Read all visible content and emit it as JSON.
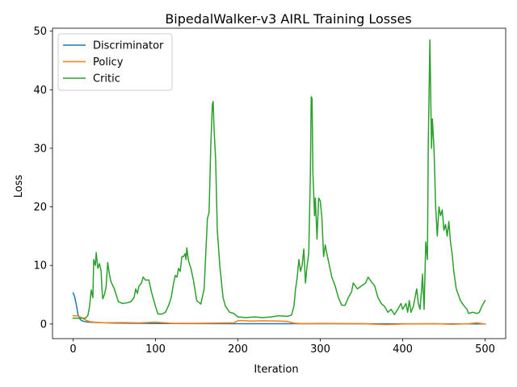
{
  "chart_data": {
    "type": "line",
    "title": "BipedalWalker-v3 AIRL Training Losses",
    "xlabel": "Iteration",
    "ylabel": "Loss",
    "xlim": [
      -25,
      525
    ],
    "ylim": [
      -2.5,
      50.5
    ],
    "xticks": [
      0,
      100,
      200,
      300,
      400,
      500
    ],
    "yticks": [
      0,
      10,
      20,
      30,
      40,
      50
    ],
    "grid": false,
    "legend_position": "top-left",
    "series": [
      {
        "name": "Discriminator",
        "color": "#1f77b4",
        "points": [
          [
            0,
            5.3
          ],
          [
            2,
            4.6
          ],
          [
            4,
            3.2
          ],
          [
            6,
            1.6
          ],
          [
            8,
            0.9
          ],
          [
            10,
            0.6
          ],
          [
            13,
            0.45
          ],
          [
            16,
            0.35
          ],
          [
            20,
            0.3
          ],
          [
            30,
            0.25
          ],
          [
            50,
            0.15
          ],
          [
            100,
            0.08
          ],
          [
            150,
            0.06
          ],
          [
            200,
            0.05
          ],
          [
            300,
            0.04
          ],
          [
            400,
            0.03
          ],
          [
            500,
            0.02
          ]
        ]
      },
      {
        "name": "Policy",
        "color": "#ff7f0e",
        "points": [
          [
            0,
            1.4
          ],
          [
            5,
            1.4
          ],
          [
            10,
            1.1
          ],
          [
            15,
            0.7
          ],
          [
            20,
            0.4
          ],
          [
            30,
            0.25
          ],
          [
            40,
            0.2
          ],
          [
            60,
            0.25
          ],
          [
            80,
            0.18
          ],
          [
            100,
            0.32
          ],
          [
            120,
            0.12
          ],
          [
            150,
            0.12
          ],
          [
            195,
            0.2
          ],
          [
            200,
            0.55
          ],
          [
            205,
            0.6
          ],
          [
            215,
            0.5
          ],
          [
            230,
            0.55
          ],
          [
            250,
            0.5
          ],
          [
            260,
            0.45
          ],
          [
            268,
            0.15
          ],
          [
            280,
            0.05
          ],
          [
            300,
            0.1
          ],
          [
            350,
            0.05
          ],
          [
            380,
            -0.1
          ],
          [
            400,
            0.0
          ],
          [
            440,
            0.05
          ],
          [
            460,
            -0.05
          ],
          [
            480,
            0.05
          ],
          [
            490,
            0.2
          ],
          [
            500,
            0.0
          ]
        ]
      },
      {
        "name": "Critic",
        "color": "#2ca02c",
        "points": [
          [
            0,
            1.0
          ],
          [
            5,
            1.0
          ],
          [
            10,
            1.0
          ],
          [
            15,
            1.0
          ],
          [
            18,
            1.5
          ],
          [
            20,
            3.0
          ],
          [
            22,
            5.8
          ],
          [
            24,
            4.5
          ],
          [
            25,
            11.0
          ],
          [
            27,
            10.0
          ],
          [
            28,
            12.2
          ],
          [
            30,
            9.5
          ],
          [
            32,
            10.3
          ],
          [
            34,
            9.0
          ],
          [
            35,
            6.0
          ],
          [
            36,
            4.3
          ],
          [
            38,
            5.0
          ],
          [
            40,
            6.3
          ],
          [
            42,
            10.5
          ],
          [
            44,
            8.5
          ],
          [
            46,
            7.2
          ],
          [
            50,
            6.0
          ],
          [
            55,
            3.8
          ],
          [
            60,
            3.5
          ],
          [
            65,
            3.6
          ],
          [
            70,
            3.8
          ],
          [
            74,
            4.5
          ],
          [
            76,
            6.0
          ],
          [
            78,
            5.2
          ],
          [
            80,
            6.5
          ],
          [
            83,
            7.0
          ],
          [
            85,
            8.0
          ],
          [
            88,
            7.5
          ],
          [
            92,
            7.5
          ],
          [
            95,
            5.5
          ],
          [
            100,
            3.0
          ],
          [
            103,
            1.7
          ],
          [
            108,
            1.7
          ],
          [
            112,
            2.0
          ],
          [
            116,
            3.2
          ],
          [
            119,
            4.5
          ],
          [
            122,
            7.0
          ],
          [
            124,
            8.3
          ],
          [
            126,
            8.0
          ],
          [
            128,
            9.5
          ],
          [
            130,
            9.0
          ],
          [
            132,
            11.5
          ],
          [
            134,
            11.5
          ],
          [
            136,
            12.0
          ],
          [
            137,
            11.0
          ],
          [
            138,
            13.0
          ],
          [
            140,
            10.8
          ],
          [
            143,
            9.5
          ],
          [
            146,
            7.5
          ],
          [
            150,
            4.0
          ],
          [
            155,
            3.4
          ],
          [
            159,
            6.0
          ],
          [
            163,
            18.0
          ],
          [
            165,
            19.0
          ],
          [
            167,
            30.0
          ],
          [
            169,
            37.5
          ],
          [
            170,
            38.0
          ],
          [
            171,
            33.5
          ],
          [
            173,
            28.0
          ],
          [
            175,
            16.0
          ],
          [
            178,
            10.0
          ],
          [
            182,
            4.5
          ],
          [
            185,
            3.0
          ],
          [
            190,
            2.0
          ],
          [
            195,
            1.8
          ],
          [
            200,
            1.2
          ],
          [
            210,
            1.1
          ],
          [
            220,
            1.2
          ],
          [
            230,
            1.1
          ],
          [
            240,
            1.2
          ],
          [
            250,
            1.4
          ],
          [
            260,
            1.3
          ],
          [
            265,
            1.5
          ],
          [
            268,
            3.0
          ],
          [
            270,
            6.0
          ],
          [
            272,
            8.0
          ],
          [
            274,
            11.0
          ],
          [
            276,
            9.0
          ],
          [
            278,
            10.0
          ],
          [
            280,
            12.8
          ],
          [
            282,
            7.0
          ],
          [
            284,
            10.0
          ],
          [
            286,
            12.0
          ],
          [
            288,
            26.0
          ],
          [
            289,
            38.8
          ],
          [
            290,
            38.5
          ],
          [
            291,
            26.0
          ],
          [
            293,
            18.5
          ],
          [
            294,
            21.5
          ],
          [
            296,
            14.5
          ],
          [
            298,
            21.5
          ],
          [
            300,
            21.0
          ],
          [
            302,
            18.0
          ],
          [
            304,
            11.5
          ],
          [
            306,
            13.5
          ],
          [
            308,
            12.0
          ],
          [
            311,
            10.0
          ],
          [
            314,
            8.0
          ],
          [
            318,
            6.5
          ],
          [
            322,
            4.5
          ],
          [
            326,
            3.2
          ],
          [
            330,
            3.2
          ],
          [
            334,
            4.5
          ],
          [
            338,
            5.5
          ],
          [
            340,
            7.0
          ],
          [
            345,
            6.0
          ],
          [
            350,
            6.5
          ],
          [
            355,
            7.0
          ],
          [
            358,
            8.0
          ],
          [
            362,
            7.2
          ],
          [
            366,
            6.5
          ],
          [
            370,
            4.5
          ],
          [
            374,
            3.5
          ],
          [
            378,
            3.0
          ],
          [
            382,
            2.0
          ],
          [
            386,
            2.5
          ],
          [
            390,
            1.6
          ],
          [
            394,
            2.5
          ],
          [
            396,
            3.0
          ],
          [
            398,
            3.5
          ],
          [
            400,
            2.5
          ],
          [
            402,
            3.0
          ],
          [
            404,
            3.5
          ],
          [
            406,
            2.0
          ],
          [
            408,
            4.0
          ],
          [
            410,
            2.0
          ],
          [
            413,
            3.0
          ],
          [
            415,
            4.5
          ],
          [
            417,
            6.0
          ],
          [
            419,
            3.5
          ],
          [
            421,
            2.5
          ],
          [
            423,
            6.0
          ],
          [
            424,
            8.5
          ],
          [
            426,
            2.5
          ],
          [
            428,
            14.0
          ],
          [
            430,
            11.0
          ],
          [
            431,
            30.0
          ],
          [
            433,
            48.5
          ],
          [
            435,
            30.0
          ],
          [
            436,
            35.0
          ],
          [
            438,
            30.0
          ],
          [
            440,
            20.0
          ],
          [
            442,
            15.0
          ],
          [
            444,
            20.0
          ],
          [
            446,
            18.5
          ],
          [
            448,
            19.5
          ],
          [
            450,
            16.0
          ],
          [
            452,
            17.0
          ],
          [
            454,
            15.0
          ],
          [
            456,
            17.5
          ],
          [
            458,
            14.0
          ],
          [
            460,
            12.0
          ],
          [
            462,
            9.0
          ],
          [
            465,
            6.0
          ],
          [
            470,
            4.0
          ],
          [
            475,
            3.0
          ],
          [
            478,
            2.5
          ],
          [
            480,
            1.8
          ],
          [
            485,
            2.0
          ],
          [
            490,
            1.8
          ],
          [
            493,
            2.0
          ],
          [
            496,
            3.0
          ],
          [
            500,
            4.0
          ]
        ]
      }
    ]
  }
}
